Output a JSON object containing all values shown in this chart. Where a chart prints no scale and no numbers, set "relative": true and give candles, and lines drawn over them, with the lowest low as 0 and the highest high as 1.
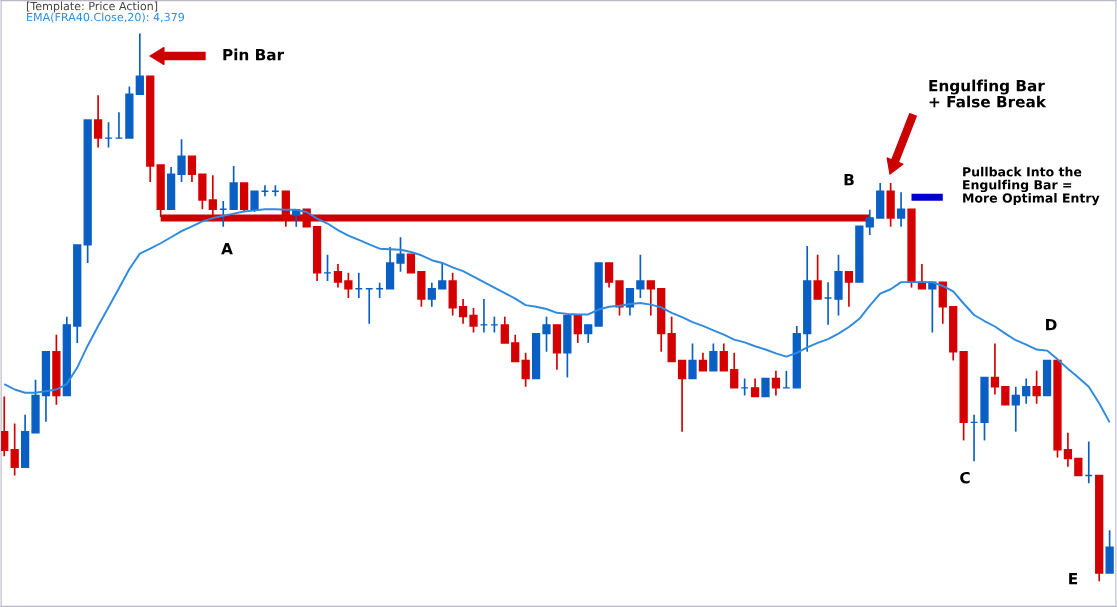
{
  "chart_data": {
    "type": "candlestick",
    "relative": true,
    "categories": [
      null,
      null,
      null,
      null,
      null,
      null,
      null,
      null,
      null,
      null,
      null,
      null,
      null,
      null,
      null,
      null,
      null,
      null,
      null,
      null,
      null,
      null,
      null,
      null,
      null,
      null,
      null,
      null,
      null,
      null,
      null,
      null,
      null,
      null,
      null,
      null,
      null,
      null,
      null,
      null,
      null,
      null,
      null,
      null,
      null,
      null,
      null,
      null,
      null,
      null,
      null,
      null,
      null,
      null,
      null,
      null,
      null,
      null,
      null,
      null,
      null,
      null,
      null,
      null,
      null,
      null,
      null,
      null,
      null,
      null,
      null,
      null,
      null,
      null,
      null,
      null,
      null,
      null,
      null,
      null,
      null,
      null,
      null,
      null,
      null,
      null,
      null,
      null,
      null,
      null,
      null,
      null,
      null,
      null,
      null,
      null,
      null,
      null,
      null,
      null,
      null,
      null,
      null,
      null,
      null,
      null,
      null
    ],
    "ohlc": [
      [
        0.273,
        0.337,
        0.228,
        0.239
      ],
      [
        0.24,
        0.288,
        0.193,
        0.208
      ],
      [
        0.208,
        0.304,
        0.208,
        0.273
      ],
      [
        0.271,
        0.368,
        0.271,
        0.339
      ],
      [
        0.339,
        0.419,
        0.291,
        0.419
      ],
      [
        0.419,
        0.45,
        0.322,
        0.339
      ],
      [
        0.339,
        0.483,
        0.339,
        0.468
      ],
      [
        0.466,
        0.614,
        0.435,
        0.614
      ],
      [
        0.614,
        0.842,
        0.581,
        0.842
      ],
      [
        0.842,
        0.887,
        0.792,
        0.809
      ],
      [
        0.809,
        0.838,
        0.792,
        0.809
      ],
      [
        0.809,
        0.856,
        0.809,
        0.809
      ],
      [
        0.809,
        0.903,
        0.809,
        0.889
      ],
      [
        0.889,
        1.0,
        0.889,
        0.922
      ],
      [
        0.922,
        0.922,
        0.729,
        0.758
      ],
      [
        0.76,
        0.76,
        0.665,
        0.679
      ],
      [
        0.679,
        0.756,
        0.679,
        0.743
      ],
      [
        0.743,
        0.807,
        0.729,
        0.776
      ],
      [
        0.776,
        0.776,
        0.729,
        0.743
      ],
      [
        0.743,
        0.743,
        0.679,
        0.696
      ],
      [
        0.696,
        0.741,
        0.668,
        0.679
      ],
      [
        0.679,
        0.694,
        0.647,
        0.679
      ],
      [
        0.679,
        0.758,
        0.679,
        0.727
      ],
      [
        0.727,
        0.727,
        0.674,
        0.679
      ],
      [
        0.679,
        0.712,
        0.674,
        0.712
      ],
      [
        0.712,
        0.723,
        0.703,
        0.712
      ],
      [
        0.712,
        0.723,
        0.703,
        0.712
      ],
      [
        0.712,
        0.712,
        0.647,
        0.665
      ],
      [
        0.668,
        0.678,
        0.647,
        0.678
      ],
      [
        0.679,
        0.679,
        0.647,
        0.647
      ],
      [
        0.647,
        0.647,
        0.548,
        0.563
      ],
      [
        0.563,
        0.596,
        0.548,
        0.563
      ],
      [
        0.565,
        0.579,
        0.536,
        0.546
      ],
      [
        0.548,
        0.563,
        0.517,
        0.534
      ],
      [
        0.534,
        0.563,
        0.517,
        0.534
      ],
      [
        0.534,
        0.534,
        0.47,
        0.534
      ],
      [
        0.534,
        0.545,
        0.517,
        0.534
      ],
      [
        0.534,
        0.61,
        0.534,
        0.581
      ],
      [
        0.581,
        0.628,
        0.565,
        0.597
      ],
      [
        0.597,
        0.597,
        0.563,
        0.563
      ],
      [
        0.565,
        0.565,
        0.501,
        0.515
      ],
      [
        0.515,
        0.545,
        0.501,
        0.534
      ],
      [
        0.534,
        0.581,
        0.534,
        0.548
      ],
      [
        0.548,
        0.563,
        0.485,
        0.499
      ],
      [
        0.501,
        0.515,
        0.47,
        0.483
      ],
      [
        0.485,
        0.499,
        0.454,
        0.466
      ],
      [
        0.468,
        0.515,
        0.454,
        0.468
      ],
      [
        0.468,
        0.483,
        0.454,
        0.468
      ],
      [
        0.468,
        0.483,
        0.435,
        0.435
      ],
      [
        0.435,
        0.45,
        0.401,
        0.401
      ],
      [
        0.403,
        0.417,
        0.355,
        0.37
      ],
      [
        0.37,
        0.452,
        0.37,
        0.452
      ],
      [
        0.452,
        0.483,
        0.419,
        0.468
      ],
      [
        0.468,
        0.468,
        0.386,
        0.417
      ],
      [
        0.417,
        0.485,
        0.372,
        0.485
      ],
      [
        0.485,
        0.485,
        0.435,
        0.452
      ],
      [
        0.452,
        0.468,
        0.435,
        0.468
      ],
      [
        0.466,
        0.581,
        0.466,
        0.581
      ],
      [
        0.581,
        0.581,
        0.536,
        0.546
      ],
      [
        0.548,
        0.548,
        0.485,
        0.501
      ],
      [
        0.501,
        0.534,
        0.485,
        0.534
      ],
      [
        0.534,
        0.596,
        0.517,
        0.548
      ],
      [
        0.548,
        0.548,
        0.485,
        0.534
      ],
      [
        0.534,
        0.534,
        0.419,
        0.452
      ],
      [
        0.452,
        0.483,
        0.401,
        0.401
      ],
      [
        0.403,
        0.403,
        0.273,
        0.37
      ],
      [
        0.37,
        0.434,
        0.37,
        0.403
      ],
      [
        0.403,
        0.417,
        0.384,
        0.384
      ],
      [
        0.384,
        0.434,
        0.384,
        0.419
      ],
      [
        0.419,
        0.434,
        0.384,
        0.384
      ],
      [
        0.386,
        0.417,
        0.353,
        0.353
      ],
      [
        0.353,
        0.37,
        0.339,
        0.353
      ],
      [
        0.353,
        0.37,
        0.337,
        0.337
      ],
      [
        0.337,
        0.37,
        0.337,
        0.37
      ],
      [
        0.37,
        0.384,
        0.339,
        0.353
      ],
      [
        0.353,
        0.384,
        0.353,
        0.353
      ],
      [
        0.353,
        0.466,
        0.353,
        0.452
      ],
      [
        0.452,
        0.612,
        0.419,
        0.548
      ],
      [
        0.548,
        0.596,
        0.515,
        0.515
      ],
      [
        0.517,
        0.546,
        0.468,
        0.517
      ],
      [
        0.515,
        0.596,
        0.485,
        0.565
      ],
      [
        0.565,
        0.565,
        0.501,
        0.546
      ],
      [
        0.546,
        0.648,
        0.546,
        0.648
      ],
      [
        0.647,
        0.678,
        0.632,
        0.663
      ],
      [
        0.663,
        0.727,
        0.663,
        0.712
      ],
      [
        0.712,
        0.727,
        0.647,
        0.663
      ],
      [
        0.663,
        0.71,
        0.647,
        0.679
      ],
      [
        0.679,
        0.679,
        0.536,
        0.546
      ],
      [
        0.546,
        0.579,
        0.534,
        0.534
      ],
      [
        0.534,
        0.546,
        0.454,
        0.546
      ],
      [
        0.546,
        0.546,
        0.47,
        0.501
      ],
      [
        0.501,
        0.501,
        0.403,
        0.419
      ],
      [
        0.419,
        0.419,
        0.257,
        0.29
      ],
      [
        0.29,
        0.304,
        0.219,
        0.29
      ],
      [
        0.29,
        0.372,
        0.257,
        0.372
      ],
      [
        0.372,
        0.434,
        0.341,
        0.355
      ],
      [
        0.355,
        0.355,
        0.322,
        0.322
      ],
      [
        0.322,
        0.355,
        0.273,
        0.339
      ],
      [
        0.339,
        0.37,
        0.324,
        0.355
      ],
      [
        0.355,
        0.384,
        0.324,
        0.339
      ],
      [
        0.339,
        0.403,
        0.339,
        0.403
      ],
      [
        0.403,
        0.403,
        0.226,
        0.24
      ],
      [
        0.24,
        0.271,
        0.209,
        0.224
      ],
      [
        0.224,
        0.224,
        0.193,
        0.193
      ],
      [
        0.193,
        0.255,
        0.179,
        0.193
      ],
      [
        0.193,
        0.193,
        0.0,
        0.015
      ],
      [
        0.015,
        0.093,
        0.015,
        0.062
      ]
    ],
    "colors": [
      "#d40000",
      "#d40000",
      "#0a5fc4",
      "#0a5fc4",
      "#0a5fc4",
      "#d40000",
      "#0a5fc4",
      "#0a5fc4",
      "#0a5fc4",
      "#d40000",
      "#0a5fc4",
      "#0a5fc4",
      "#0a5fc4",
      "#0a5fc4",
      "#d40000",
      "#d40000",
      "#0a5fc4",
      "#0a5fc4",
      "#d40000",
      "#d40000",
      "#d40000",
      "#0a5fc4",
      "#0a5fc4",
      "#d40000",
      "#0a5fc4",
      "#0a5fc4",
      "#0a5fc4",
      "#d40000",
      "#0a5fc4",
      "#d40000",
      "#d40000",
      "#0a5fc4",
      "#d40000",
      "#d40000",
      "#0a5fc4",
      "#0a5fc4",
      "#0a5fc4",
      "#0a5fc4",
      "#0a5fc4",
      "#d40000",
      "#d40000",
      "#0a5fc4",
      "#0a5fc4",
      "#d40000",
      "#d40000",
      "#d40000",
      "#0a5fc4",
      "#0a5fc4",
      "#d40000",
      "#d40000",
      "#d40000",
      "#0a5fc4",
      "#0a5fc4",
      "#d40000",
      "#0a5fc4",
      "#d40000",
      "#0a5fc4",
      "#0a5fc4",
      "#d40000",
      "#d40000",
      "#0a5fc4",
      "#0a5fc4",
      "#d40000",
      "#d40000",
      "#d40000",
      "#d40000",
      "#0a5fc4",
      "#d40000",
      "#0a5fc4",
      "#d40000",
      "#d40000",
      "#0a5fc4",
      "#d40000",
      "#0a5fc4",
      "#d40000",
      "#0a5fc4",
      "#0a5fc4",
      "#0a5fc4",
      "#d40000",
      "#0a5fc4",
      "#0a5fc4",
      "#d40000",
      "#0a5fc4",
      "#0a5fc4",
      "#0a5fc4",
      "#d40000",
      "#0a5fc4",
      "#d40000",
      "#d40000",
      "#0a5fc4",
      "#d40000",
      "#d40000",
      "#d40000",
      "#0a5fc4",
      "#0a5fc4",
      "#d40000",
      "#d40000",
      "#0a5fc4",
      "#0a5fc4",
      "#d40000",
      "#0a5fc4",
      "#d40000",
      "#d40000",
      "#d40000",
      "#0a5fc4",
      "#d40000",
      "#0a5fc4"
    ],
    "series": [
      {
        "type": "line",
        "name": "EMA(FRA40.Close,20): 4,379",
        "color": "#2e8be0",
        "values": [
          0.36,
          0.35,
          0.344,
          0.344,
          0.347,
          0.35,
          0.36,
          0.39,
          0.43,
          0.466,
          0.5,
          0.535,
          0.57,
          0.598,
          0.607,
          0.617,
          0.628,
          0.639,
          0.648,
          0.657,
          0.663,
          0.667,
          0.671,
          0.675,
          0.677,
          0.679,
          0.679,
          0.678,
          0.678,
          0.674,
          0.662,
          0.653,
          0.641,
          0.631,
          0.623,
          0.615,
          0.607,
          0.606,
          0.605,
          0.601,
          0.595,
          0.586,
          0.581,
          0.573,
          0.566,
          0.556,
          0.546,
          0.536,
          0.526,
          0.516,
          0.504,
          0.501,
          0.497,
          0.49,
          0.488,
          0.487,
          0.487,
          0.496,
          0.501,
          0.503,
          0.506,
          0.508,
          0.505,
          0.5,
          0.49,
          0.482,
          0.473,
          0.466,
          0.458,
          0.45,
          0.441,
          0.436,
          0.429,
          0.423,
          0.416,
          0.41,
          0.417,
          0.427,
          0.435,
          0.442,
          0.452,
          0.464,
          0.479,
          0.503,
          0.525,
          0.533,
          0.546,
          0.546,
          0.546,
          0.546,
          0.539,
          0.529,
          0.507,
          0.486,
          0.475,
          0.465,
          0.452,
          0.44,
          0.432,
          0.423,
          0.421,
          0.405,
          0.388,
          0.372,
          0.355,
          0.325,
          0.29
        ]
      },
      {
        "type": "line",
        "color": "#cc0000",
        "values": [
          null,
          null,
          null,
          null,
          null,
          null,
          null,
          null,
          null,
          null,
          null,
          null,
          null,
          null,
          null,
          0.663,
          0.663,
          0.663,
          0.663,
          0.663,
          0.663,
          0.663,
          0.663,
          0.663,
          0.663,
          0.663,
          0.663,
          0.663,
          0.663,
          0.663,
          0.663,
          0.663,
          0.663,
          0.663,
          0.663,
          0.663,
          0.663,
          0.663,
          0.663,
          0.663,
          0.663,
          0.663,
          0.663,
          0.663,
          0.663,
          0.663,
          0.663,
          0.663,
          0.663,
          0.663,
          0.663,
          0.663,
          0.663,
          0.663,
          0.663,
          0.663,
          0.663,
          0.663,
          0.663,
          0.663,
          0.663,
          0.663,
          0.663,
          0.663,
          0.663,
          0.663,
          0.663,
          0.663,
          0.663,
          0.663,
          0.663,
          0.663,
          0.663,
          0.663,
          0.663,
          0.663,
          0.663,
          0.663,
          0.663,
          0.663,
          0.663,
          0.663,
          0.663,
          0.663,
          null,
          null,
          null,
          null,
          null,
          null,
          null,
          null,
          null,
          null,
          null,
          null,
          null,
          null,
          null,
          null,
          null,
          null,
          null,
          null,
          null,
          null,
          null
        ]
      },
      {
        "type": "line",
        "color": "#0000cc",
        "values": [
          null,
          null,
          null,
          null,
          null,
          null,
          null,
          null,
          null,
          null,
          null,
          null,
          null,
          null,
          null,
          null,
          null,
          null,
          null,
          null,
          null,
          null,
          null,
          null,
          null,
          null,
          null,
          null,
          null,
          null,
          null,
          null,
          null,
          null,
          null,
          null,
          null,
          null,
          null,
          null,
          null,
          null,
          null,
          null,
          null,
          null,
          null,
          null,
          null,
          null,
          null,
          null,
          null,
          null,
          null,
          null,
          null,
          null,
          null,
          null,
          null,
          null,
          null,
          null,
          null,
          null,
          null,
          null,
          null,
          null,
          null,
          null,
          null,
          null,
          null,
          null,
          null,
          null,
          null,
          null,
          null,
          null,
          null,
          null,
          null,
          null,
          null,
          0.701,
          0.701,
          0.701,
          0.701,
          null,
          null,
          null,
          null,
          null,
          null,
          null,
          null,
          null,
          null,
          null,
          null,
          null,
          null,
          null,
          null
        ]
      }
    ],
    "annotations": [
      "[Template: Price Action]",
      "Pin Bar",
      "Engulfing Bar\n+ False Break",
      "Pullback Into the\nEngulfing Bar =\nMore Optimal Entry",
      "A",
      "B",
      "C",
      "D",
      "E"
    ]
  }
}
